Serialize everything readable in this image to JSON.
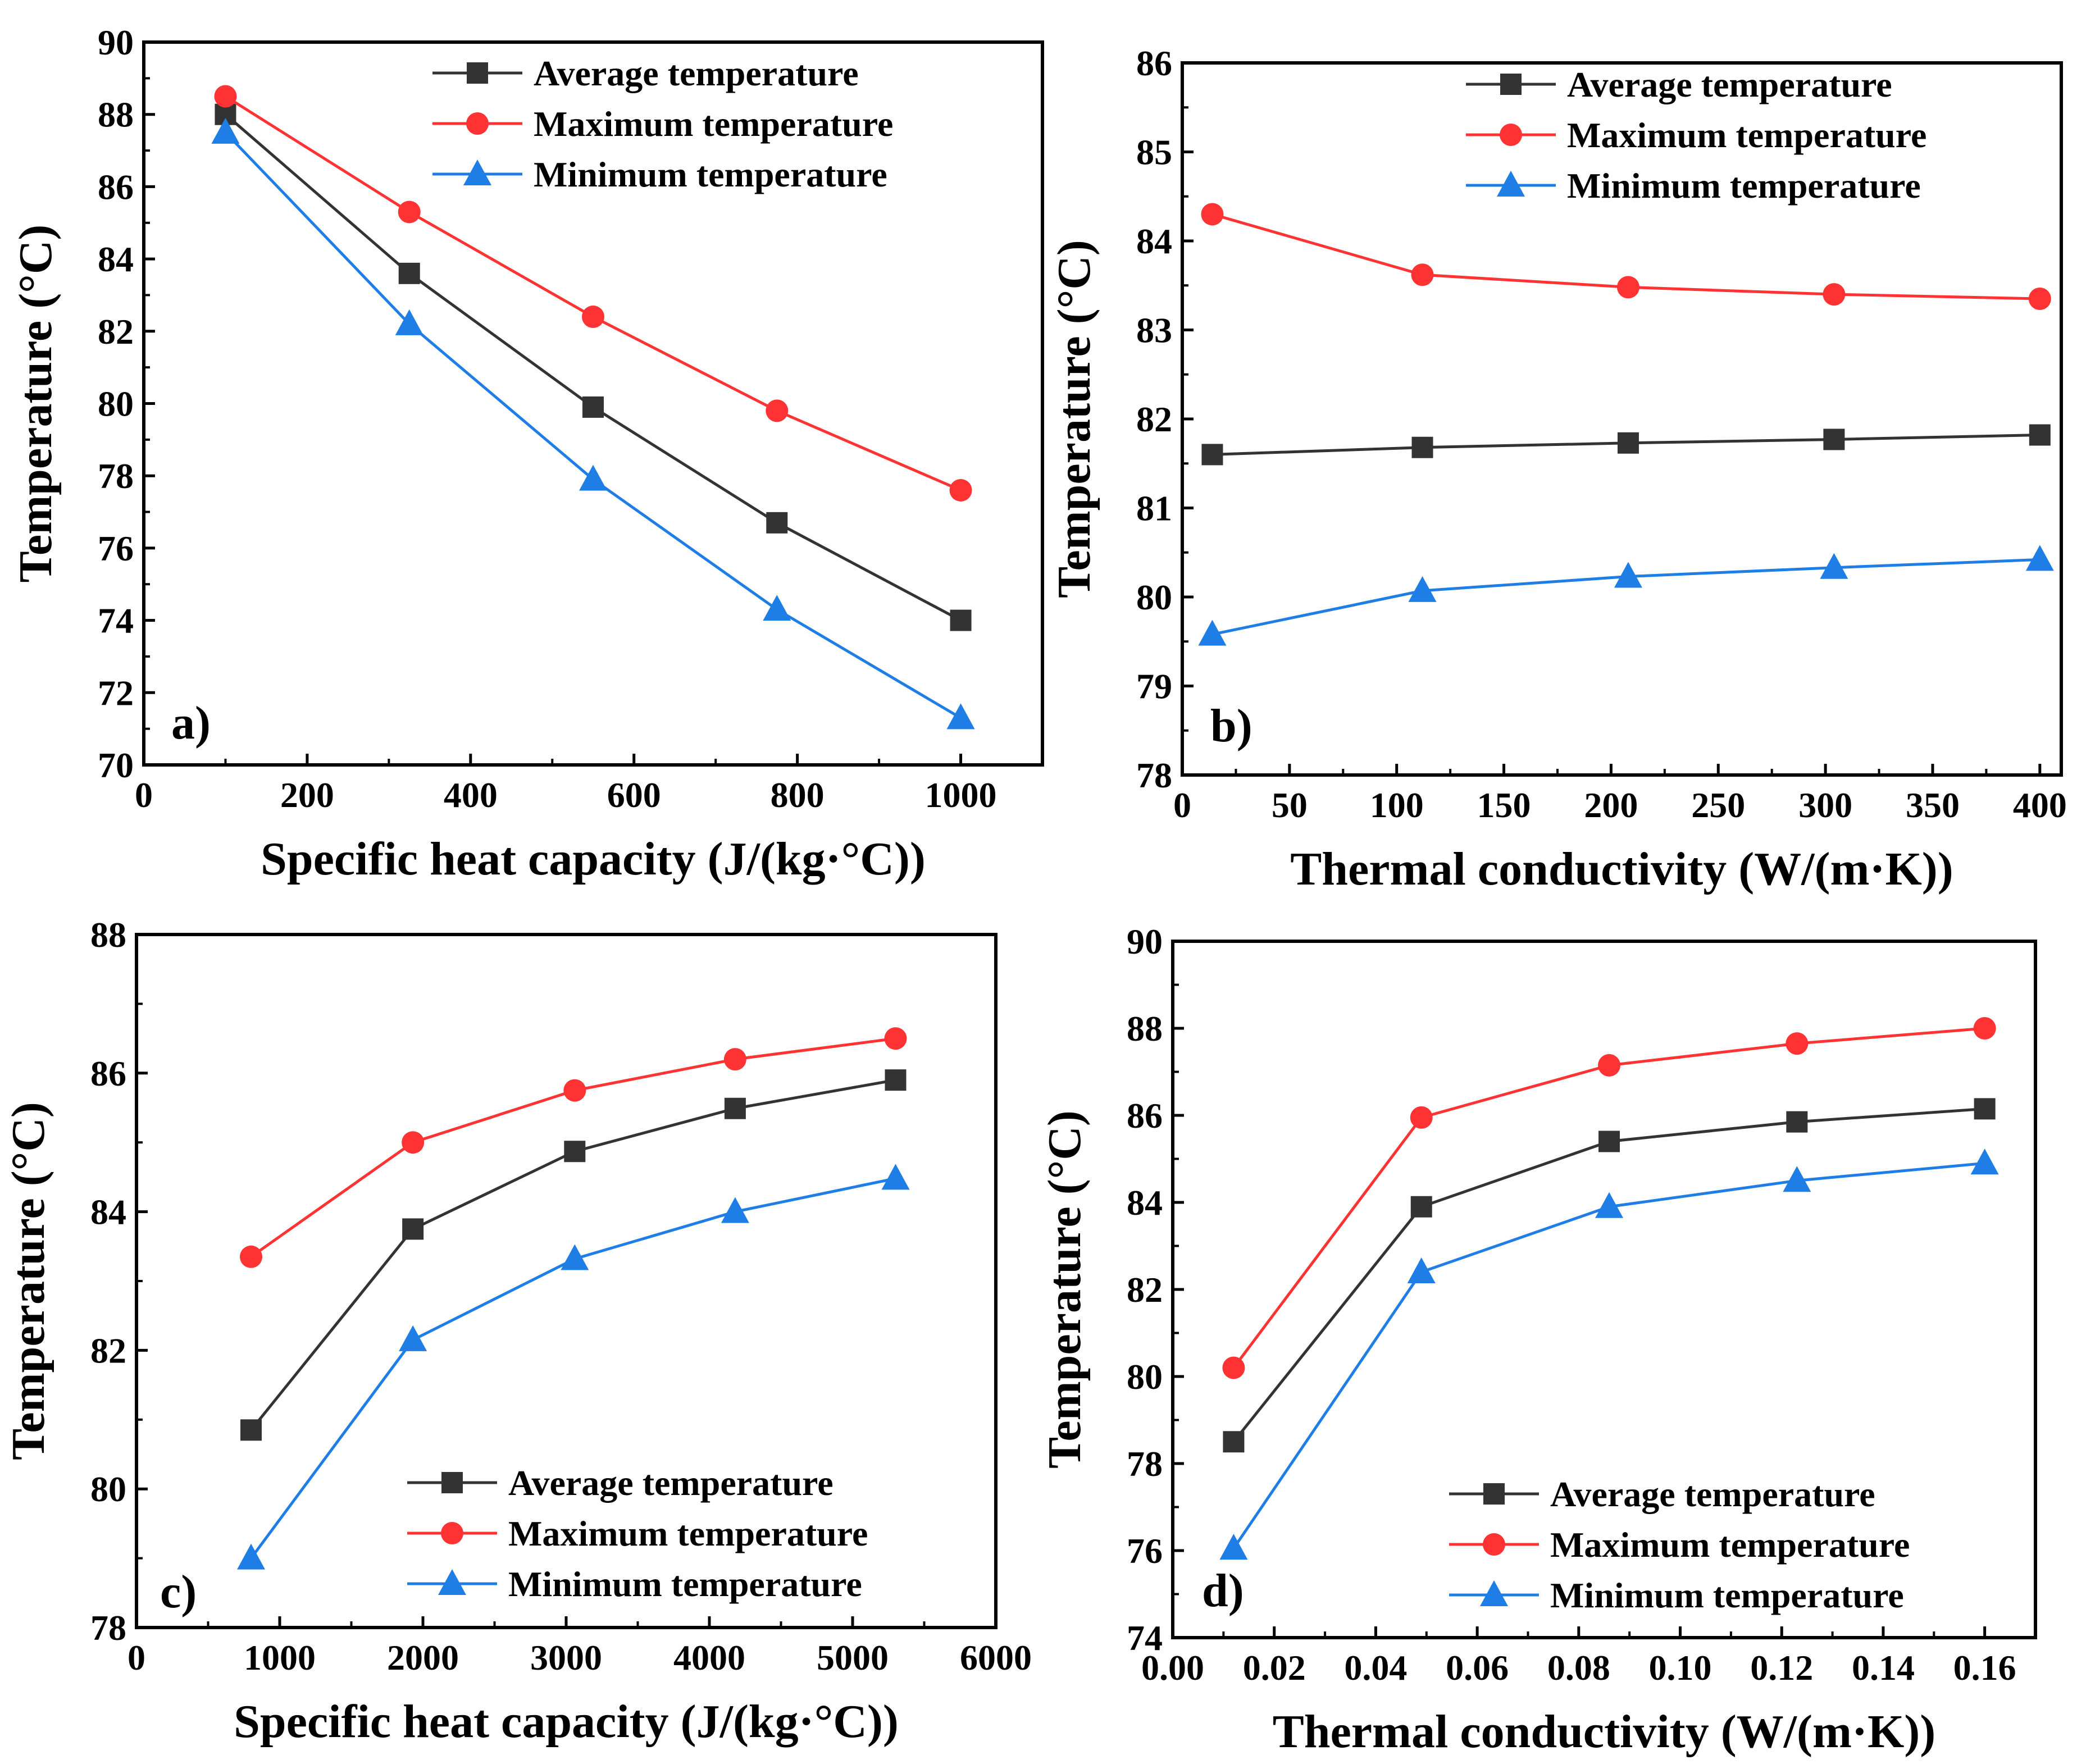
{
  "colors": {
    "average": "#333333",
    "maximum": "#ff3333",
    "minimum": "#1f7ee6",
    "axes": "#000000"
  },
  "chart_data": [
    {
      "id": "a",
      "type": "line",
      "panel_label": "a)",
      "xlabel": "Specific heat capacity (J/(kg·°C))",
      "ylabel": "Temperature (°C)",
      "xlim": [
        0,
        1100
      ],
      "ylim": [
        70,
        90
      ],
      "xticks": [
        0,
        200,
        400,
        600,
        800,
        1000
      ],
      "yticks": [
        70,
        72,
        74,
        76,
        78,
        80,
        82,
        84,
        86,
        88,
        90
      ],
      "x_tick_labels": [
        "0",
        "200",
        "400",
        "600",
        "800",
        "1000"
      ],
      "y_tick_labels": [
        "70",
        "72",
        "74",
        "76",
        "78",
        "80",
        "82",
        "84",
        "86",
        "88",
        "90"
      ],
      "legend_position": "top-right",
      "x": [
        100,
        325,
        550,
        775,
        1000
      ],
      "series": [
        {
          "name": "Average temperature",
          "marker": "square",
          "color_key": "average",
          "values": [
            88.0,
            83.6,
            79.9,
            76.7,
            74.0
          ]
        },
        {
          "name": "Maximum temperature",
          "marker": "circle",
          "color_key": "maximum",
          "values": [
            88.5,
            85.3,
            82.4,
            79.8,
            77.6
          ]
        },
        {
          "name": "Minimum temperature",
          "marker": "triangle",
          "color_key": "minimum",
          "values": [
            87.5,
            82.2,
            77.9,
            74.3,
            71.3
          ]
        }
      ]
    },
    {
      "id": "b",
      "type": "line",
      "panel_label": "b)",
      "xlabel": "Thermal conductivity (W/(m·K))",
      "ylabel": "Temperature (°C)",
      "xlim": [
        0,
        410
      ],
      "ylim": [
        78,
        86
      ],
      "xticks": [
        0,
        50,
        100,
        150,
        200,
        250,
        300,
        350,
        400
      ],
      "yticks": [
        78,
        79,
        80,
        81,
        82,
        83,
        84,
        85,
        86
      ],
      "x_tick_labels": [
        "0",
        "50",
        "100",
        "150",
        "200",
        "250",
        "300",
        "350",
        "400"
      ],
      "y_tick_labels": [
        "78",
        "79",
        "80",
        "81",
        "82",
        "83",
        "84",
        "85",
        "86"
      ],
      "legend_position": "top-right",
      "x": [
        14,
        112,
        208,
        304,
        400
      ],
      "series": [
        {
          "name": "Average temperature",
          "marker": "square",
          "color_key": "average",
          "values": [
            81.6,
            81.68,
            81.73,
            81.77,
            81.82
          ]
        },
        {
          "name": "Maximum temperature",
          "marker": "circle",
          "color_key": "maximum",
          "values": [
            84.3,
            83.62,
            83.48,
            83.4,
            83.35
          ]
        },
        {
          "name": "Minimum temperature",
          "marker": "triangle",
          "color_key": "minimum",
          "values": [
            79.58,
            80.07,
            80.23,
            80.33,
            80.42
          ]
        }
      ]
    },
    {
      "id": "c",
      "type": "line",
      "panel_label": "c)",
      "xlabel": "Specific heat capacity (J/(kg·°C))",
      "ylabel": "Temperature (°C)",
      "xlim": [
        0,
        6000
      ],
      "ylim": [
        78,
        88
      ],
      "xticks": [
        0,
        1000,
        2000,
        3000,
        4000,
        5000,
        6000
      ],
      "yticks": [
        78,
        80,
        82,
        84,
        86,
        88
      ],
      "x_tick_labels": [
        "0",
        "1000",
        "2000",
        "3000",
        "4000",
        "5000",
        "6000"
      ],
      "y_tick_labels": [
        "78",
        "80",
        "82",
        "84",
        "86",
        "88"
      ],
      "legend_position": "bottom-right",
      "x": [
        800,
        1930,
        3060,
        4180,
        5300
      ],
      "series": [
        {
          "name": "Average temperature",
          "marker": "square",
          "color_key": "average",
          "values": [
            80.85,
            83.75,
            84.87,
            85.49,
            85.9
          ]
        },
        {
          "name": "Maximum temperature",
          "marker": "circle",
          "color_key": "maximum",
          "values": [
            83.35,
            85.0,
            85.75,
            86.2,
            86.5
          ]
        },
        {
          "name": "Minimum temperature",
          "marker": "triangle",
          "color_key": "minimum",
          "values": [
            79.0,
            82.15,
            83.32,
            84.0,
            84.48
          ]
        }
      ]
    },
    {
      "id": "d",
      "type": "line",
      "panel_label": "d)",
      "xlabel": "Thermal conductivity (W/(m·K))",
      "ylabel": "Temperature (°C)",
      "xlim": [
        0,
        0.17
      ],
      "ylim": [
        74,
        90
      ],
      "xticks": [
        0,
        0.02,
        0.04,
        0.06,
        0.08,
        0.1,
        0.12,
        0.14,
        0.16
      ],
      "yticks": [
        74,
        76,
        78,
        80,
        82,
        84,
        86,
        88,
        90
      ],
      "x_tick_labels": [
        "0.00",
        "0.02",
        "0.04",
        "0.06",
        "0.08",
        "0.10",
        "0.12",
        "0.14",
        "0.16"
      ],
      "y_tick_labels": [
        "74",
        "76",
        "78",
        "80",
        "82",
        "84",
        "86",
        "88",
        "90"
      ],
      "legend_position": "bottom-right",
      "x": [
        0.012,
        0.049,
        0.086,
        0.123,
        0.16
      ],
      "series": [
        {
          "name": "Average temperature",
          "marker": "square",
          "color_key": "average",
          "values": [
            78.5,
            83.9,
            85.4,
            85.85,
            86.15
          ]
        },
        {
          "name": "Maximum temperature",
          "marker": "circle",
          "color_key": "maximum",
          "values": [
            80.2,
            85.95,
            87.15,
            87.65,
            88.0
          ]
        },
        {
          "name": "Minimum temperature",
          "marker": "triangle",
          "color_key": "minimum",
          "values": [
            76.05,
            82.4,
            83.9,
            84.5,
            84.9
          ]
        }
      ]
    }
  ]
}
